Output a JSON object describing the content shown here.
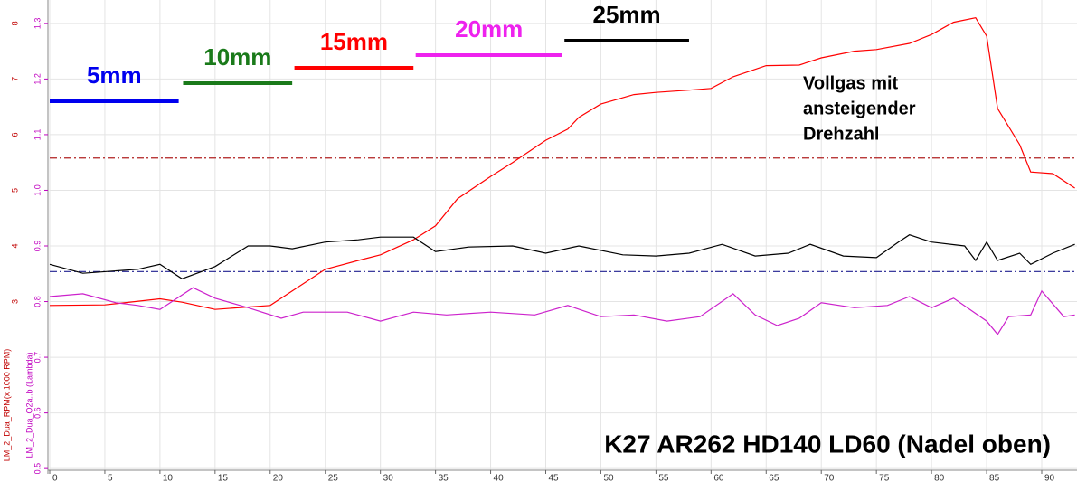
{
  "chart_data": {
    "type": "line",
    "x_axis_ticks_note": null,
    "xlim": [
      0,
      93.2
    ],
    "xticks": [
      0,
      5,
      10,
      15,
      20,
      25,
      30,
      35,
      40,
      45,
      50,
      55,
      60,
      65,
      70,
      75,
      80,
      85,
      90
    ],
    "ylim": [
      0.497,
      1.342
    ],
    "yticks": [
      0.5,
      0.6,
      0.7,
      0.8,
      0.9,
      {
        "value": 1,
        "label": "1.0"
      },
      1.1,
      1.2,
      1.3
    ],
    "y_label": "LM_2_Dua_O2a..b (Lambda)",
    "y_label_color": "#c000c0",
    "y2lim": [
      -0.03,
      8.42
    ],
    "y2ticks": [
      3,
      4,
      5,
      6,
      7,
      8
    ],
    "y2_label": "LM_2_Dua_RPM(x 1000 RPM)",
    "y2_label_color": "#c00000",
    "grid": true,
    "series": [
      {
        "color": "#ff0000",
        "axis": "y2",
        "x": [
          0,
          5,
          10,
          12,
          15,
          20,
          22,
          25,
          28,
          30,
          33,
          35,
          37,
          40,
          42,
          45,
          47,
          48,
          50,
          53,
          55,
          58,
          60,
          62,
          65,
          68,
          70,
          73,
          75,
          78,
          80,
          82,
          84,
          85,
          86,
          88,
          89,
          91,
          93
        ],
        "values": [
          2.93,
          2.94,
          3.05,
          2.99,
          2.86,
          2.93,
          3.19,
          3.58,
          3.74,
          3.84,
          4.11,
          4.36,
          4.85,
          5.25,
          5.5,
          5.9,
          6.1,
          6.31,
          6.55,
          6.72,
          6.76,
          6.8,
          6.83,
          7.04,
          7.24,
          7.25,
          7.38,
          7.5,
          7.53,
          7.64,
          7.8,
          8.02,
          8.1,
          7.77,
          6.47,
          5.82,
          5.33,
          5.3,
          5.04
        ]
      },
      {
        "color": "#000000",
        "x": [
          0,
          3,
          8,
          10,
          12,
          15,
          18,
          20,
          22,
          25,
          28,
          30,
          33,
          35,
          38,
          42,
          45,
          48,
          52,
          55,
          58,
          61,
          64,
          67,
          69,
          72,
          75,
          77,
          78,
          80,
          83,
          84,
          85,
          86,
          88,
          89,
          91,
          93
        ],
        "values": [
          0.867,
          0.851,
          0.858,
          0.867,
          0.841,
          0.863,
          0.9,
          0.9,
          0.895,
          0.907,
          0.911,
          0.916,
          0.916,
          0.89,
          0.898,
          0.9,
          0.887,
          0.9,
          0.884,
          0.882,
          0.887,
          0.903,
          0.882,
          0.887,
          0.903,
          0.882,
          0.879,
          0.907,
          0.92,
          0.907,
          0.9,
          0.874,
          0.907,
          0.874,
          0.887,
          0.867,
          0.887,
          0.903
        ]
      },
      {
        "color": "#cc22cc",
        "x": [
          0,
          3,
          6,
          8,
          10,
          13,
          15,
          18,
          21,
          23,
          27,
          30,
          33,
          36,
          40,
          44,
          47,
          50,
          53,
          56,
          59,
          62,
          64,
          66,
          68,
          70,
          73,
          76,
          78,
          80,
          82,
          85,
          86,
          87,
          89,
          90,
          92,
          93
        ],
        "values": [
          0.809,
          0.814,
          0.798,
          0.793,
          0.786,
          0.825,
          0.806,
          0.789,
          0.77,
          0.781,
          0.781,
          0.765,
          0.781,
          0.776,
          0.781,
          0.776,
          0.793,
          0.773,
          0.776,
          0.765,
          0.773,
          0.814,
          0.776,
          0.757,
          0.77,
          0.798,
          0.789,
          0.793,
          0.809,
          0.789,
          0.806,
          0.765,
          0.741,
          0.773,
          0.776,
          0.819,
          0.773,
          0.776
        ]
      }
    ],
    "ref_lines": [
      {
        "value": 1.058,
        "color": "#b02020"
      },
      {
        "value": 0.854,
        "color": "#202090"
      }
    ],
    "range_labels": [
      {
        "text": "5mm",
        "color": "#0000ee",
        "x_start": 0,
        "x_end": 11.7
      },
      {
        "text": "10mm",
        "color": "#1a7a1a",
        "x_start": 12.1,
        "x_end": 22
      },
      {
        "text": "15mm",
        "color": "#ff0000",
        "x_start": 22.2,
        "x_end": 33
      },
      {
        "text": "20mm",
        "color": "#ee22ee",
        "x_start": 33.2,
        "x_end": 46.5
      },
      {
        "text": "25mm",
        "color": "#000000",
        "x_start": 46.7,
        "x_end": 58
      }
    ],
    "note_lines": [
      "Vollgas mit",
      "ansteigender",
      "Drehzahl"
    ],
    "caption": "K27 AR262 HD140 LD60 (Nadel oben)"
  }
}
